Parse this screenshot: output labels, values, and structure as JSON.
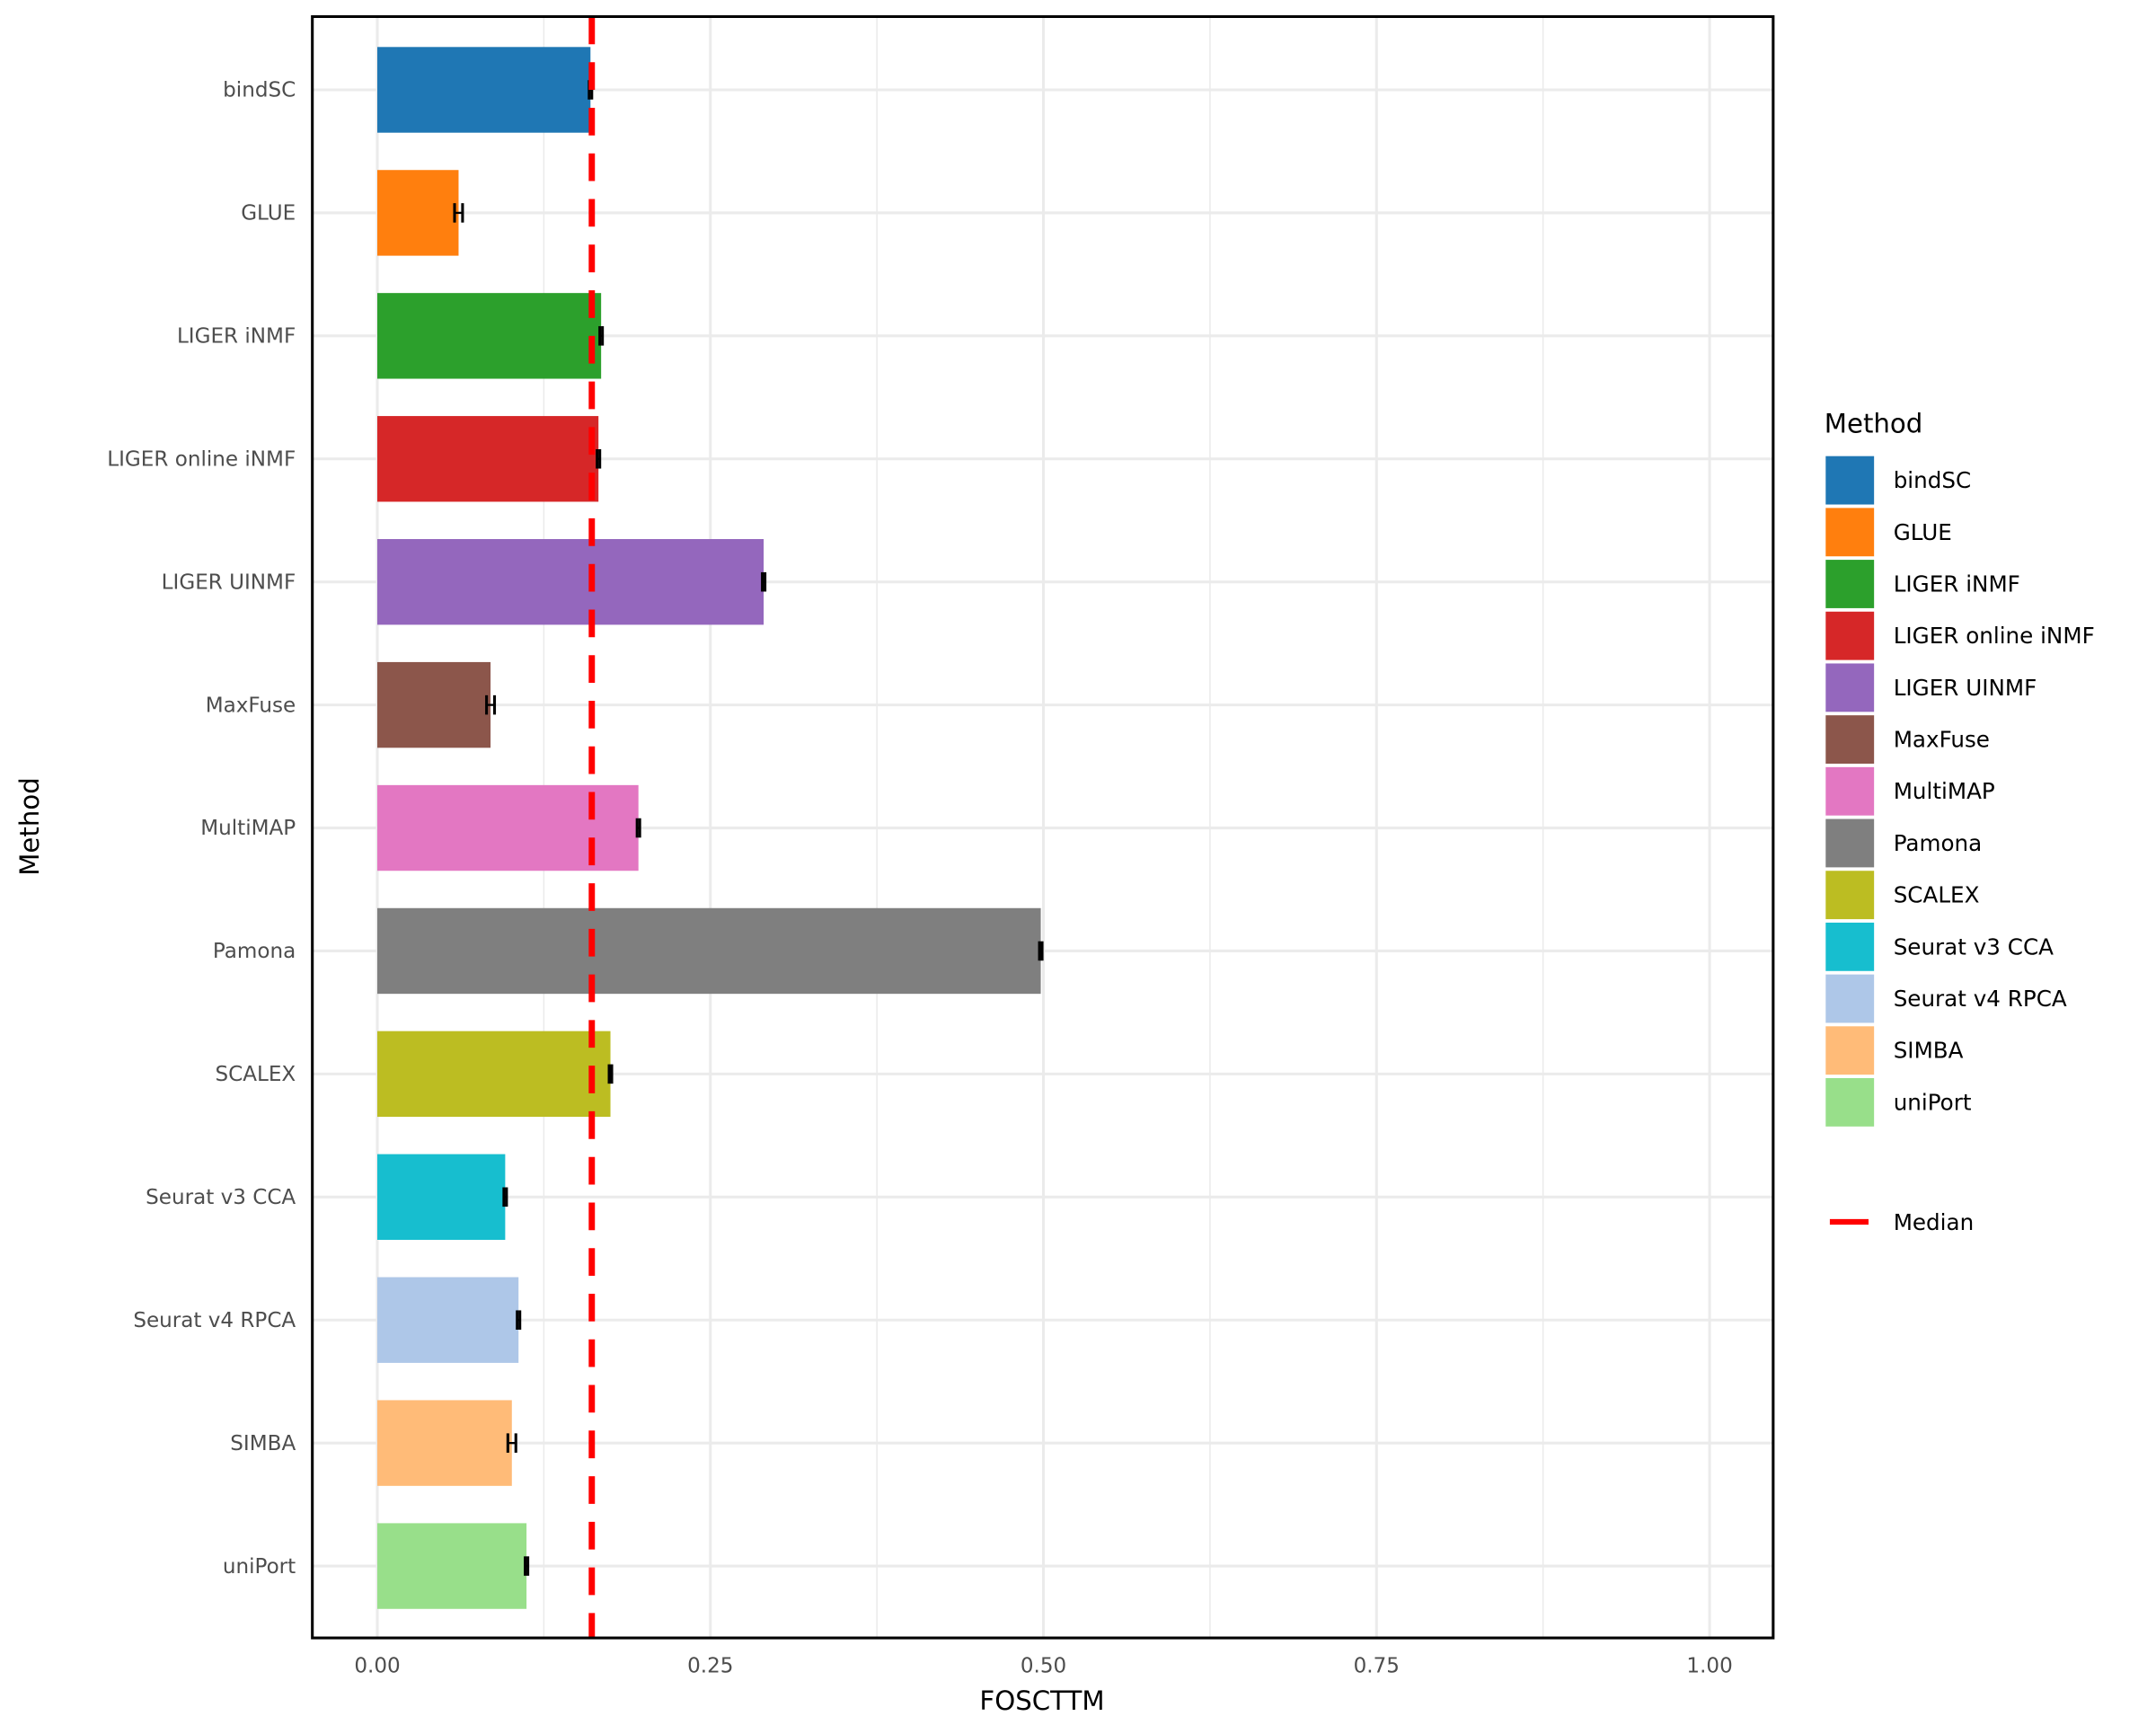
{
  "chart_data": {
    "type": "bar",
    "orientation": "horizontal",
    "xlabel": "FOSCTTM",
    "ylabel": "Method",
    "xlim": [
      -0.05,
      1.05
    ],
    "xticks": [
      "0.00",
      "0.25",
      "0.50",
      "0.75",
      "1.00"
    ],
    "xtick_values": [
      0,
      0.25,
      0.5,
      0.75,
      1.0
    ],
    "grid": true,
    "categories": [
      "bindSC",
      "GLUE",
      "LIGER iNMF",
      "LIGER online iNMF",
      "LIGER UINMF",
      "MaxFuse",
      "MultiMAP",
      "Pamona",
      "SCALEX",
      "Seurat v3 CCA",
      "Seurat v4 RPCA",
      "SIMBA",
      "uniPort"
    ],
    "values": [
      0.16,
      0.061,
      0.168,
      0.166,
      0.29,
      0.085,
      0.196,
      0.498,
      0.175,
      0.096,
      0.106,
      0.101,
      0.112
    ],
    "errors": [
      0.001,
      0.003,
      0.001,
      0.001,
      0.001,
      0.003,
      0.001,
      0.001,
      0.001,
      0.001,
      0.001,
      0.003,
      0.001
    ],
    "colors": [
      "#1f77b4",
      "#ff7f0e",
      "#2ca02c",
      "#d62728",
      "#9467bd",
      "#8c564b",
      "#e377c2",
      "#7f7f7f",
      "#bcbd22",
      "#17becf",
      "#aec7e8",
      "#ffbb78",
      "#98df8a"
    ],
    "median": 0.161,
    "median_color": "#ff0000",
    "legend": {
      "title": "Method",
      "placement": "right",
      "median_label": "Median"
    }
  }
}
